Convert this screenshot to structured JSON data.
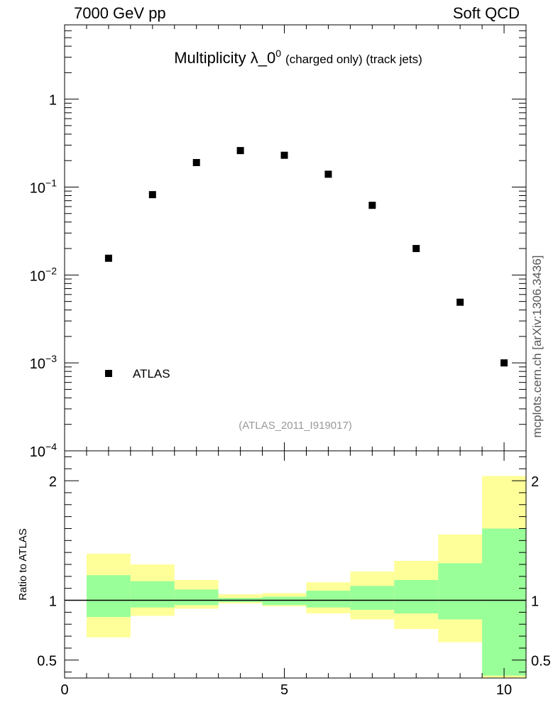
{
  "header": {
    "left": "7000 GeV pp",
    "right": "Soft QCD",
    "side_label": "mcplots.cern.ch [arXiv:1306.3436]"
  },
  "chart_data": [
    {
      "type": "scatter",
      "title_main": "Multiplicity λ_0",
      "title_sup": "0",
      "title_small": "(charged only) (track jets)",
      "analysis_label": "(ATLAS_2011_I919017)",
      "y_scale": "log",
      "ylim": [
        0.0001,
        7
      ],
      "y_ticks": [
        {
          "base": "1",
          "exp": ""
        },
        {
          "base": "10",
          "exp": "−1"
        },
        {
          "base": "10",
          "exp": "−2"
        },
        {
          "base": "10",
          "exp": "−3"
        },
        {
          "base": "10",
          "exp": "−4"
        }
      ],
      "xlim": [
        0,
        10.5
      ],
      "legend": {
        "position": "bottom-left",
        "label": "ATLAS"
      },
      "series": [
        {
          "name": "ATLAS",
          "color": "#000000",
          "x": [
            1,
            2,
            3,
            4,
            5,
            6,
            7,
            8,
            9,
            10
          ],
          "y": [
            0.0155,
            0.082,
            0.19,
            0.26,
            0.23,
            0.14,
            0.062,
            0.02,
            0.0049,
            0.001
          ]
        }
      ]
    },
    {
      "type": "area",
      "ylabel": "Ratio to ATLAS",
      "ylim": [
        0.35,
        2.25
      ],
      "y_ticks": [
        "2",
        "1",
        "0.5"
      ],
      "xlim": [
        0,
        10.5
      ],
      "x_ticks": [
        "0",
        "5",
        "10"
      ],
      "reference": 1,
      "bins": [
        {
          "lo": 0.5,
          "hi": 1.5,
          "inner": [
            0.86,
            1.21
          ],
          "outer": [
            0.69,
            1.39
          ]
        },
        {
          "lo": 1.5,
          "hi": 2.5,
          "inner": [
            0.94,
            1.16
          ],
          "outer": [
            0.87,
            1.3
          ]
        },
        {
          "lo": 2.5,
          "hi": 3.5,
          "inner": [
            0.96,
            1.09
          ],
          "outer": [
            0.93,
            1.17
          ]
        },
        {
          "lo": 3.5,
          "hi": 4.5,
          "inner": [
            0.985,
            1.02
          ],
          "outer": [
            0.975,
            1.05
          ]
        },
        {
          "lo": 4.5,
          "hi": 5.5,
          "inner": [
            0.96,
            1.03
          ],
          "outer": [
            0.95,
            1.06
          ]
        },
        {
          "lo": 5.5,
          "hi": 6.5,
          "inner": [
            0.94,
            1.08
          ],
          "outer": [
            0.89,
            1.15
          ]
        },
        {
          "lo": 6.5,
          "hi": 7.5,
          "inner": [
            0.92,
            1.12
          ],
          "outer": [
            0.84,
            1.24
          ]
        },
        {
          "lo": 7.5,
          "hi": 8.5,
          "inner": [
            0.89,
            1.17
          ],
          "outer": [
            0.76,
            1.33
          ]
        },
        {
          "lo": 8.5,
          "hi": 9.5,
          "inner": [
            0.84,
            1.31
          ],
          "outer": [
            0.65,
            1.55
          ]
        },
        {
          "lo": 9.5,
          "hi": 10.5,
          "inner": [
            0.37,
            1.6
          ],
          "outer": [
            0.33,
            2.04
          ]
        }
      ],
      "colors": {
        "inner": "#99ff99",
        "outer": "#ffff99"
      }
    }
  ]
}
